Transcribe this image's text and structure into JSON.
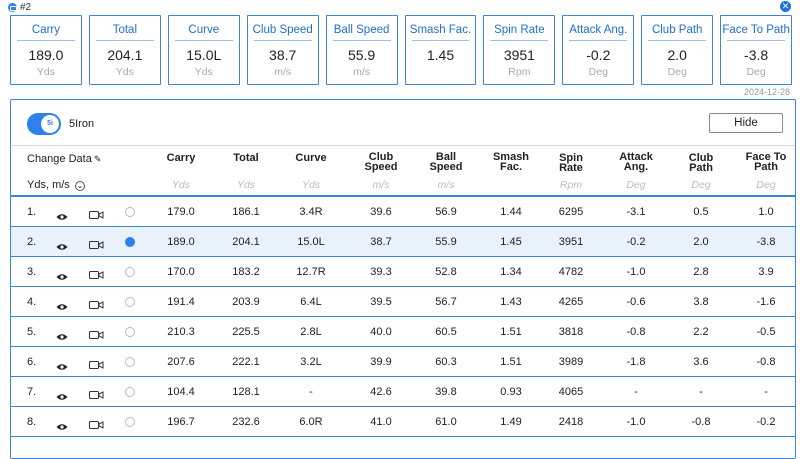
{
  "header": {
    "shot_tag": "#2",
    "close_icon": "close-icon",
    "date": "2024-12-28"
  },
  "cards": [
    {
      "label": "Carry",
      "value": "189.0",
      "unit": "Yds"
    },
    {
      "label": "Total",
      "value": "204.1",
      "unit": "Yds"
    },
    {
      "label": "Curve",
      "value": "15.0L",
      "unit": "Yds"
    },
    {
      "label": "Club Speed",
      "value": "38.7",
      "unit": "m/s"
    },
    {
      "label": "Ball Speed",
      "value": "55.9",
      "unit": "m/s"
    },
    {
      "label": "Smash Fac.",
      "value": "1.45",
      "unit": ""
    },
    {
      "label": "Spin Rate",
      "value": "3951",
      "unit": "Rpm"
    },
    {
      "label": "Attack Ang.",
      "value": "-0.2",
      "unit": "Deg"
    },
    {
      "label": "Club Path",
      "value": "2.0",
      "unit": "Deg"
    },
    {
      "label": "Face To Path",
      "value": "-3.8",
      "unit": "Deg"
    }
  ],
  "panel": {
    "toggle_label": "5i",
    "club_name": "5Iron",
    "hide_label": "Hide",
    "change_data": "Change Data",
    "units_selector": "Yds, m/s"
  },
  "columns": [
    {
      "line1": "Carry",
      "line2": "",
      "unit": "Yds"
    },
    {
      "line1": "Total",
      "line2": "",
      "unit": "Yds"
    },
    {
      "line1": "Curve",
      "line2": "",
      "unit": "Yds"
    },
    {
      "line1": "Club",
      "line2": "Speed",
      "unit": "m/s"
    },
    {
      "line1": "Ball",
      "line2": "Speed",
      "unit": "m/s"
    },
    {
      "line1": "Smash",
      "line2": "Fac.",
      "unit": ""
    },
    {
      "line1": "Spin Rate",
      "line2": "",
      "unit": "Rpm"
    },
    {
      "line1": "Attack",
      "line2": "Ang.",
      "unit": "Deg"
    },
    {
      "line1": "Club Path",
      "line2": "",
      "unit": "Deg"
    },
    {
      "line1": "Face To",
      "line2": "Path",
      "unit": "Deg"
    }
  ],
  "rows": [
    {
      "num": "1.",
      "selected": false,
      "values": [
        "179.0",
        "186.1",
        "3.4R",
        "39.6",
        "56.9",
        "1.44",
        "6295",
        "-3.1",
        "0.5",
        "1.0"
      ]
    },
    {
      "num": "2.",
      "selected": true,
      "values": [
        "189.0",
        "204.1",
        "15.0L",
        "38.7",
        "55.9",
        "1.45",
        "3951",
        "-0.2",
        "2.0",
        "-3.8"
      ]
    },
    {
      "num": "3.",
      "selected": false,
      "values": [
        "170.0",
        "183.2",
        "12.7R",
        "39.3",
        "52.8",
        "1.34",
        "4782",
        "-1.0",
        "2.8",
        "3.9"
      ]
    },
    {
      "num": "4.",
      "selected": false,
      "values": [
        "191.4",
        "203.9",
        "6.4L",
        "39.5",
        "56.7",
        "1.43",
        "4265",
        "-0.6",
        "3.8",
        "-1.6"
      ]
    },
    {
      "num": "5.",
      "selected": false,
      "values": [
        "210.3",
        "225.5",
        "2.8L",
        "40.0",
        "60.5",
        "1.51",
        "3818",
        "-0.8",
        "2.2",
        "-0.5"
      ]
    },
    {
      "num": "6.",
      "selected": false,
      "values": [
        "207.6",
        "222.1",
        "3.2L",
        "39.9",
        "60.3",
        "1.51",
        "3989",
        "-1.8",
        "3.6",
        "-0.8"
      ]
    },
    {
      "num": "7.",
      "selected": false,
      "values": [
        "104.4",
        "128.1",
        "-",
        "42.6",
        "39.8",
        "0.93",
        "4065",
        "-",
        "-",
        "-"
      ]
    },
    {
      "num": "8.",
      "selected": false,
      "values": [
        "196.7",
        "232.6",
        "6.0R",
        "41.0",
        "61.0",
        "1.49",
        "2418",
        "-1.0",
        "-0.8",
        "-0.2"
      ]
    }
  ]
}
